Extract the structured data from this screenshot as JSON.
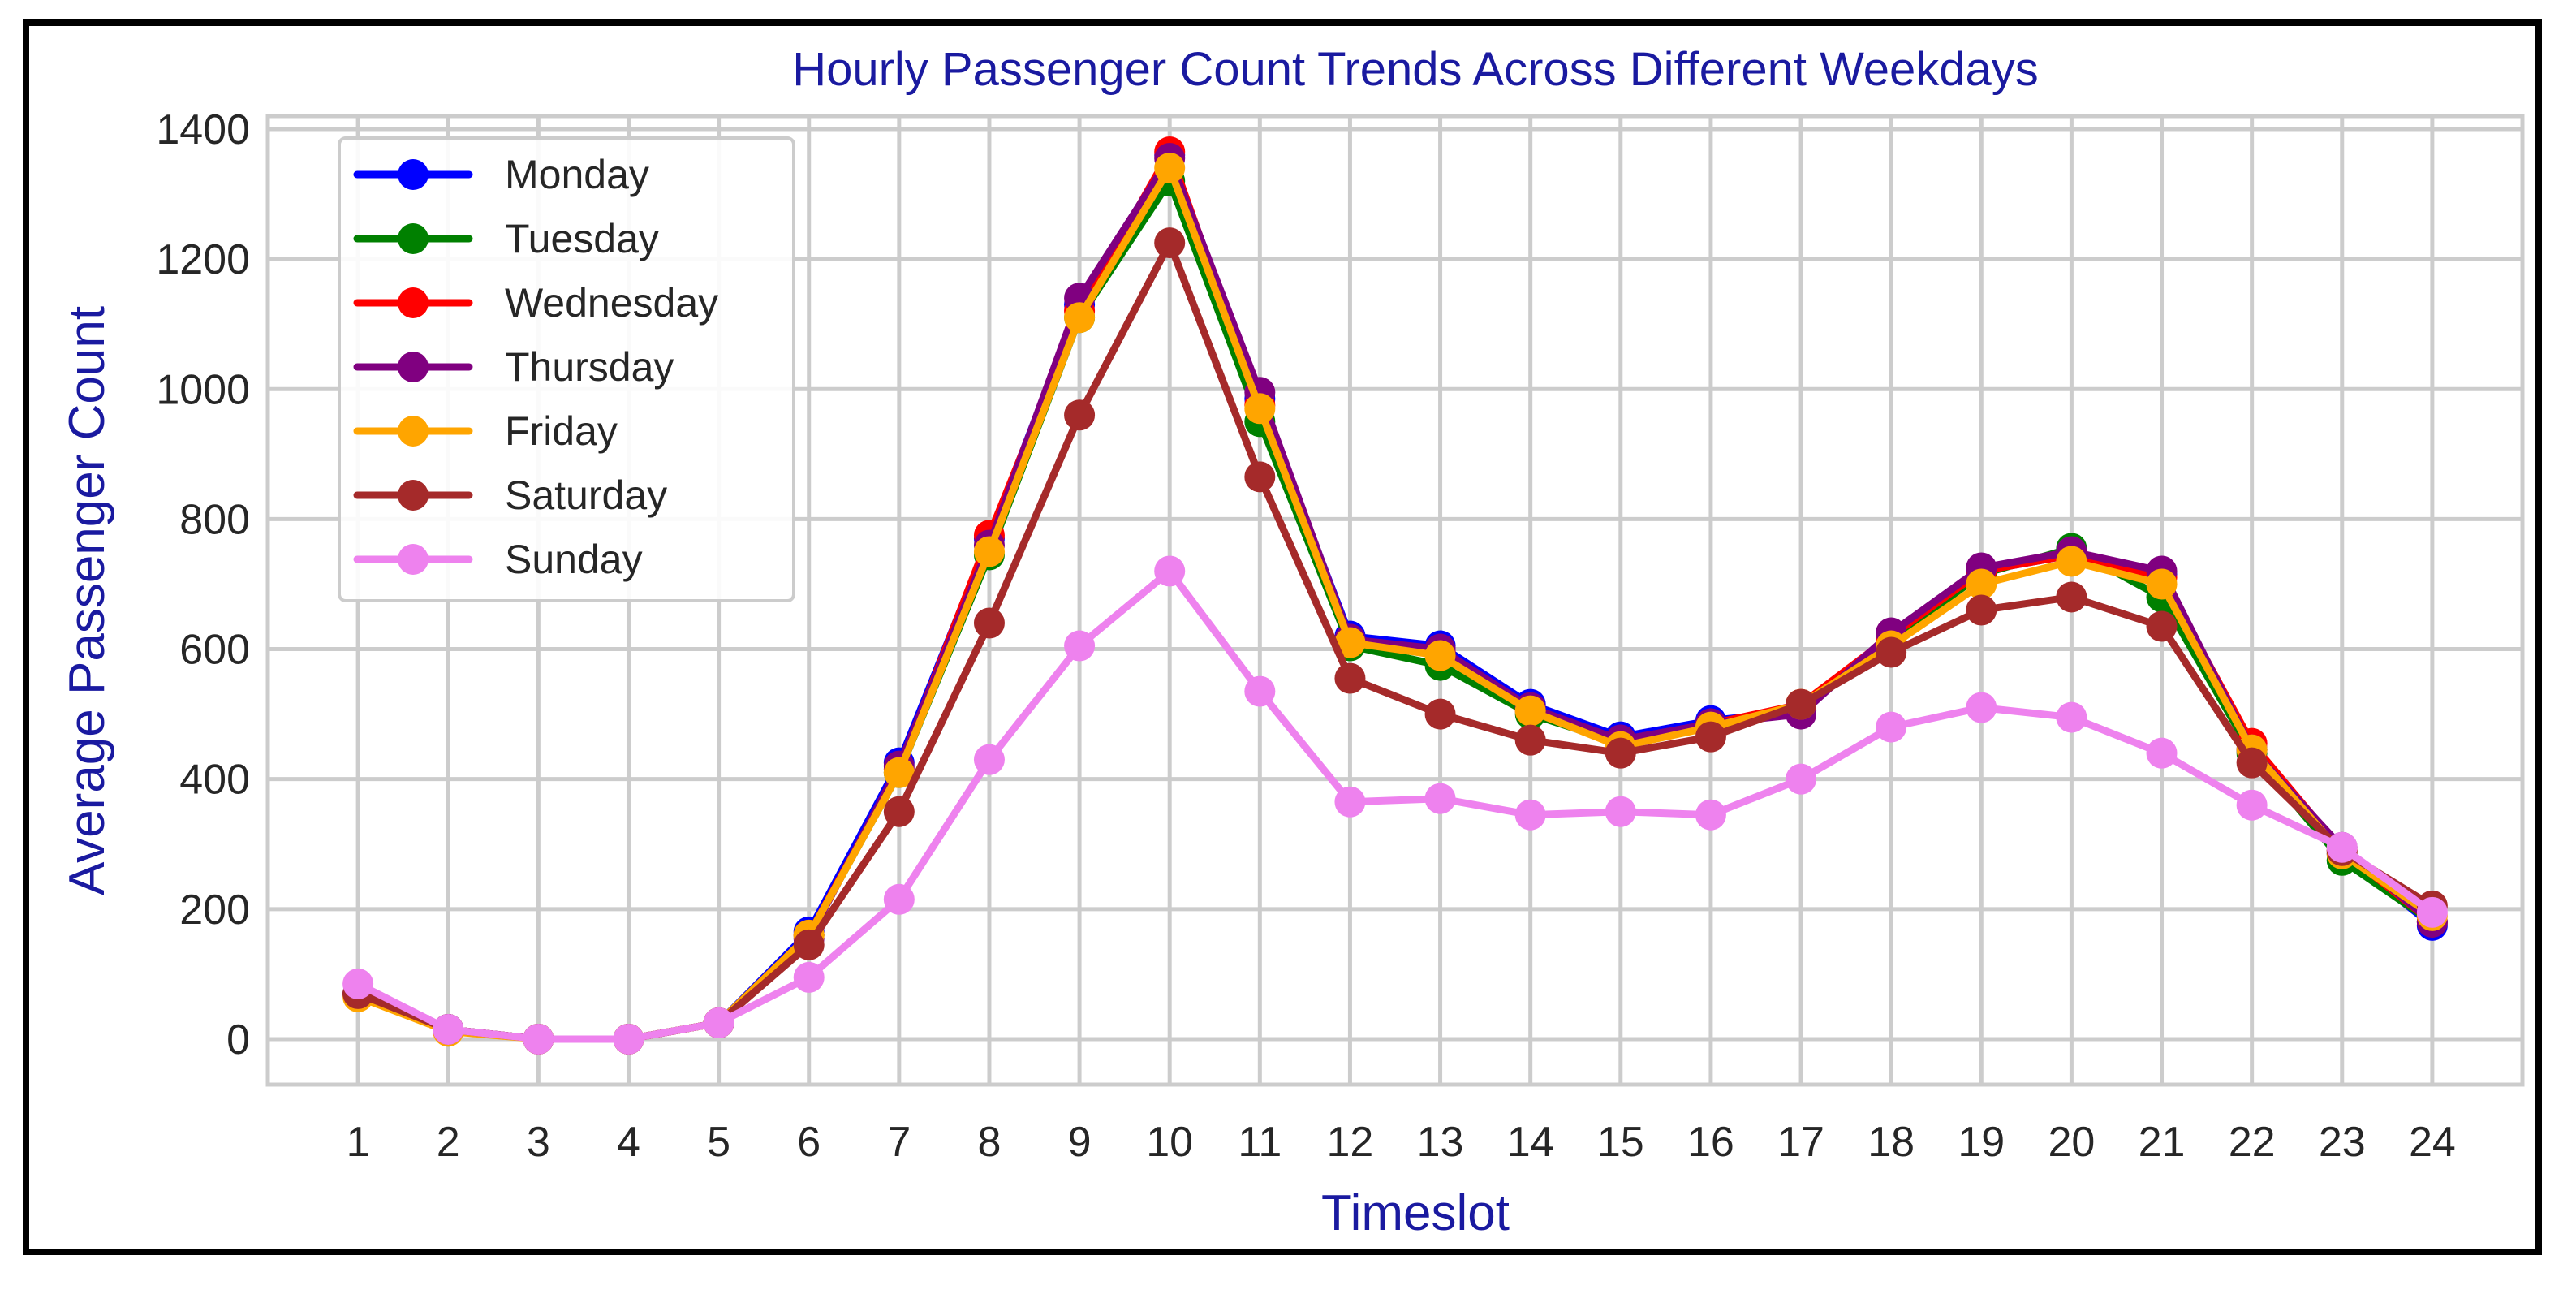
{
  "chart_data": {
    "type": "line",
    "title": "Hourly Passenger Count Trends Across Different Weekdays",
    "xlabel": "Timeslot",
    "ylabel": "Average Passenger Count",
    "x": [
      1,
      2,
      3,
      4,
      5,
      6,
      7,
      8,
      9,
      10,
      11,
      12,
      13,
      14,
      15,
      16,
      17,
      18,
      19,
      20,
      21,
      22,
      23,
      24
    ],
    "xlim": [
      0,
      25
    ],
    "ylim": [
      -70,
      1420
    ],
    "yticks": [
      0,
      200,
      400,
      600,
      800,
      1000,
      1200,
      1400
    ],
    "grid": true,
    "legend_position": "top-left",
    "series": [
      {
        "name": "Monday",
        "color": "#0000ff",
        "values": [
          70,
          15,
          0,
          0,
          25,
          165,
          425,
          770,
          1130,
          1360,
          985,
          620,
          605,
          515,
          465,
          490,
          505,
          620,
          720,
          745,
          715,
          445,
          285,
          175
        ]
      },
      {
        "name": "Tuesday",
        "color": "#008000",
        "values": [
          70,
          15,
          0,
          0,
          25,
          160,
          410,
          745,
          1110,
          1320,
          950,
          605,
          575,
          500,
          455,
          480,
          505,
          615,
          715,
          755,
          680,
          440,
          275,
          180
        ]
      },
      {
        "name": "Wednesday",
        "color": "#ff0000",
        "values": [
          70,
          15,
          0,
          0,
          25,
          160,
          415,
          775,
          1120,
          1365,
          975,
          615,
          595,
          505,
          460,
          485,
          515,
          620,
          720,
          745,
          710,
          455,
          290,
          180
        ]
      },
      {
        "name": "Thursday",
        "color": "#800080",
        "values": [
          70,
          15,
          0,
          0,
          25,
          155,
          420,
          760,
          1140,
          1355,
          995,
          615,
          600,
          510,
          460,
          485,
          500,
          625,
          725,
          750,
          720,
          445,
          295,
          180
        ]
      },
      {
        "name": "Friday",
        "color": "#ffa500",
        "values": [
          65,
          12,
          0,
          0,
          25,
          160,
          410,
          750,
          1110,
          1340,
          970,
          610,
          590,
          505,
          450,
          480,
          515,
          605,
          700,
          735,
          700,
          445,
          285,
          190
        ]
      },
      {
        "name": "Saturday",
        "color": "#a52a2a",
        "values": [
          70,
          15,
          0,
          0,
          25,
          145,
          350,
          640,
          960,
          1225,
          865,
          555,
          500,
          460,
          440,
          465,
          515,
          595,
          660,
          680,
          635,
          425,
          290,
          205
        ]
      },
      {
        "name": "Sunday",
        "color": "#ee82ee",
        "values": [
          85,
          15,
          0,
          0,
          25,
          95,
          215,
          430,
          605,
          720,
          535,
          365,
          370,
          345,
          350,
          345,
          400,
          480,
          510,
          495,
          440,
          360,
          295,
          195
        ]
      }
    ]
  }
}
